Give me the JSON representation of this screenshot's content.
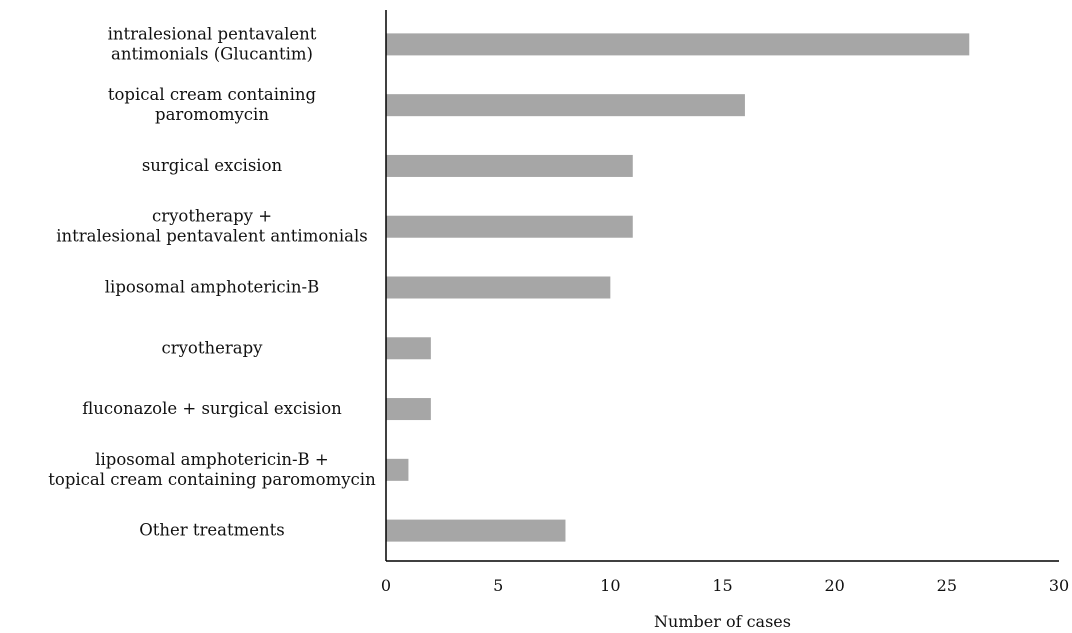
{
  "chart_data": {
    "type": "bar",
    "orientation": "horizontal",
    "categories": [
      [
        "intralesional pentavalent",
        "antimonials (Glucantim)"
      ],
      [
        "topical cream containing",
        "paromomycin"
      ],
      [
        "surgical excision"
      ],
      [
        "cryotherapy +",
        "intralesional pentavalent antimonials"
      ],
      [
        "liposomal amphotericin-B"
      ],
      [
        "cryotherapy"
      ],
      [
        "fluconazole + surgical excision"
      ],
      [
        "liposomal amphotericin-B +",
        "topical cream containing paromomycin"
      ],
      [
        "Other treatments"
      ]
    ],
    "values": [
      26,
      16,
      11,
      11,
      10,
      2,
      2,
      1,
      8
    ],
    "title": "",
    "xlabel": "Number of cases",
    "ylabel": "",
    "xlim": [
      0,
      30
    ],
    "xticks": [
      "0",
      "5",
      "10",
      "15",
      "20",
      "25",
      "30"
    ],
    "grid": false,
    "legend": "none",
    "bar_color": "#a6a6a6",
    "axis_color": "#000000"
  }
}
